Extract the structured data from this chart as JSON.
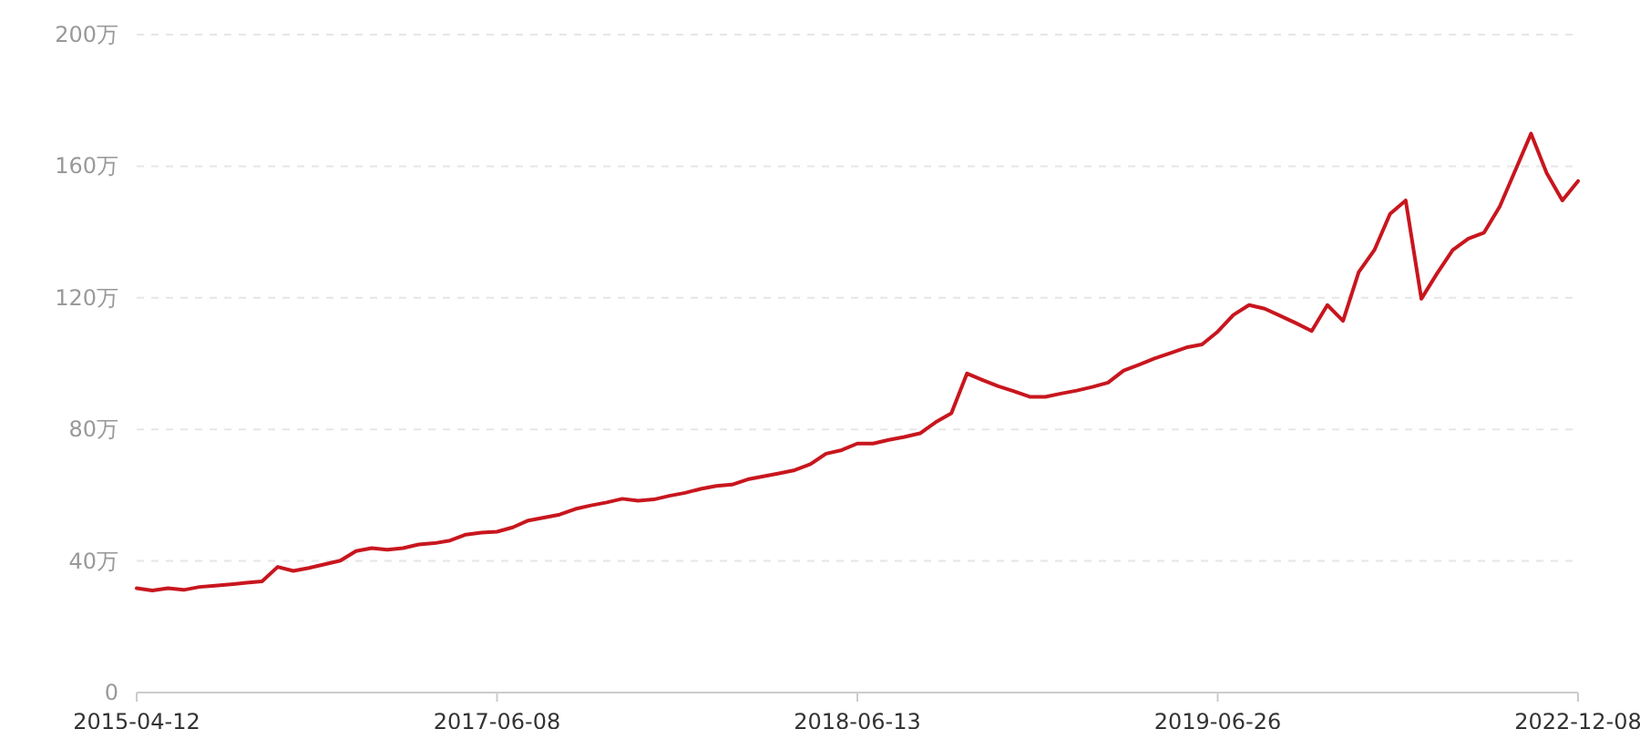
{
  "chart_data": {
    "type": "line",
    "color": "#c8161e",
    "grid": "y",
    "ylim": [
      0,
      200
    ],
    "yticks": [
      0,
      {
        "value": 40,
        "label": "40万"
      },
      {
        "value": 80,
        "label": "80万"
      },
      {
        "value": 120,
        "label": "120万"
      },
      {
        "value": 160,
        "label": "160万"
      },
      {
        "value": 200,
        "label": "200万"
      }
    ],
    "categories": [
      "2015-04-12",
      null,
      null,
      null,
      null,
      null,
      null,
      null,
      null,
      null,
      null,
      null,
      null,
      null,
      null,
      null,
      null,
      null,
      null,
      null,
      null,
      null,
      null,
      "2017-06-08",
      null,
      null,
      null,
      null,
      null,
      null,
      null,
      null,
      null,
      null,
      null,
      null,
      null,
      null,
      null,
      null,
      null,
      null,
      null,
      null,
      null,
      null,
      "2018-06-13",
      null,
      null,
      null,
      null,
      null,
      null,
      null,
      null,
      null,
      null,
      null,
      null,
      null,
      null,
      null,
      null,
      null,
      null,
      null,
      null,
      null,
      null,
      "2019-06-26",
      null,
      null,
      null,
      null,
      null,
      null,
      null,
      null,
      null,
      null,
      null,
      null,
      null,
      null,
      null,
      null,
      null,
      null,
      null,
      null,
      null,
      null,
      "2022-12-08"
    ],
    "values": [
      31.7,
      31.0,
      31.7,
      31.2,
      32.1,
      32.5,
      32.9,
      33.4,
      33.8,
      38.2,
      37.0,
      37.9,
      39.0,
      40.1,
      43.0,
      43.9,
      43.4,
      43.9,
      45.0,
      45.4,
      46.2,
      48.0,
      48.6,
      48.9,
      50.2,
      52.3,
      53.2,
      54.1,
      55.8,
      56.9,
      57.8,
      58.9,
      58.3,
      58.7,
      59.8,
      60.7,
      61.9,
      62.8,
      63.2,
      64.8,
      65.7,
      66.6,
      67.6,
      69.4,
      72.6,
      73.7,
      75.7,
      75.7,
      76.8,
      77.7,
      78.8,
      82.2,
      84.9,
      97.0,
      95.0,
      93.1,
      91.6,
      89.9,
      89.9,
      90.9,
      91.8,
      92.9,
      94.2,
      97.9,
      99.7,
      101.6,
      103.2,
      104.9,
      105.8,
      109.7,
      114.8,
      117.8,
      116.7,
      114.5,
      112.3,
      109.9,
      117.8,
      113.0,
      127.8,
      134.5,
      145.5,
      149.6,
      119.7,
      127.4,
      134.5,
      138.0,
      139.8,
      147.7,
      158.8,
      169.9,
      157.9,
      149.6,
      155.5
    ]
  }
}
